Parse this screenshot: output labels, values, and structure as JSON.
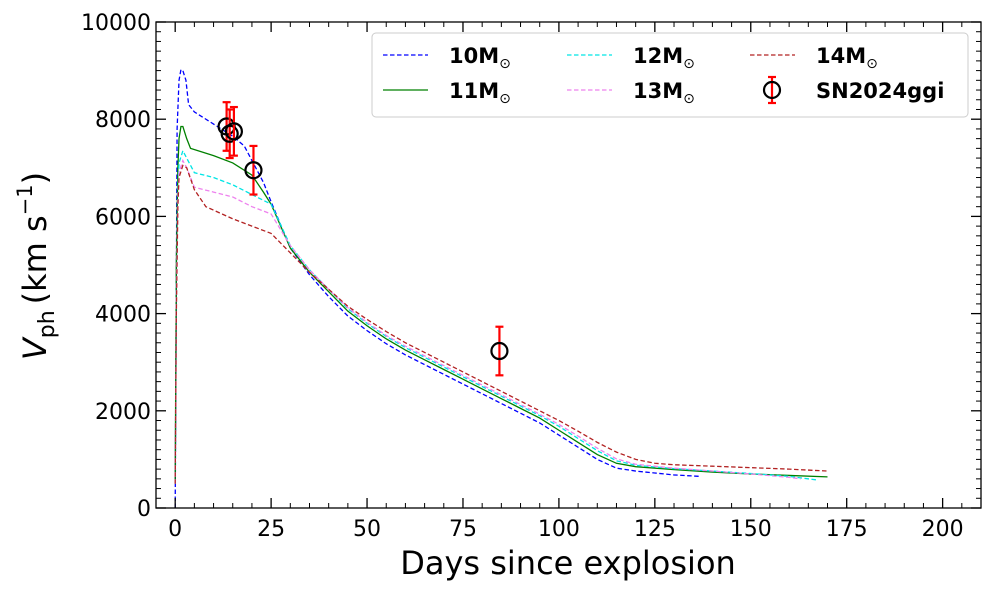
{
  "chart_data": {
    "type": "line",
    "title": "",
    "xlabel": "Days since explosion",
    "ylabel": {
      "main": "V",
      "sub": "ph",
      "unit_prefix": "(km s",
      "unit_exp": "−1",
      "unit_suffix": ")"
    },
    "xlim": [
      -5,
      210
    ],
    "ylim": [
      0,
      10000
    ],
    "xticks": [
      0,
      25,
      50,
      75,
      100,
      125,
      150,
      175,
      200
    ],
    "yticks": [
      0,
      2000,
      4000,
      6000,
      8000,
      10000
    ],
    "grid": false,
    "legend": {
      "position": "top-right",
      "columns": 3
    },
    "series": [
      {
        "name": "10M",
        "name_sub": "⊙",
        "color": "#0000ff",
        "dash": "dashed",
        "points": [
          [
            0,
            0
          ],
          [
            0.2,
            3000
          ],
          [
            0.5,
            7800
          ],
          [
            1,
            8800
          ],
          [
            1.5,
            9020
          ],
          [
            2,
            9000
          ],
          [
            2.8,
            8800
          ],
          [
            3.5,
            8300
          ],
          [
            5,
            8150
          ],
          [
            10,
            7900
          ],
          [
            15,
            7650
          ],
          [
            18,
            7450
          ],
          [
            20,
            7150
          ],
          [
            23,
            6700
          ],
          [
            25,
            6300
          ],
          [
            30,
            5350
          ],
          [
            35,
            4800
          ],
          [
            40,
            4350
          ],
          [
            45,
            3950
          ],
          [
            50,
            3650
          ],
          [
            55,
            3380
          ],
          [
            60,
            3150
          ],
          [
            65,
            2950
          ],
          [
            70,
            2750
          ],
          [
            75,
            2550
          ],
          [
            80,
            2350
          ],
          [
            85,
            2150
          ],
          [
            90,
            1950
          ],
          [
            95,
            1750
          ],
          [
            100,
            1500
          ],
          [
            105,
            1250
          ],
          [
            110,
            1000
          ],
          [
            115,
            820
          ],
          [
            120,
            760
          ],
          [
            125,
            720
          ],
          [
            130,
            680
          ],
          [
            137,
            650
          ]
        ]
      },
      {
        "name": "11M",
        "name_sub": "⊙",
        "color": "#008000",
        "dash": "solid",
        "points": [
          [
            0,
            500
          ],
          [
            0.3,
            5000
          ],
          [
            0.7,
            7000
          ],
          [
            1,
            7600
          ],
          [
            1.5,
            7850
          ],
          [
            2,
            7850
          ],
          [
            3,
            7600
          ],
          [
            4,
            7400
          ],
          [
            10,
            7250
          ],
          [
            15,
            7100
          ],
          [
            20,
            6850
          ],
          [
            23,
            6500
          ],
          [
            25,
            6250
          ],
          [
            30,
            5350
          ],
          [
            35,
            4850
          ],
          [
            40,
            4450
          ],
          [
            45,
            4050
          ],
          [
            50,
            3750
          ],
          [
            55,
            3480
          ],
          [
            60,
            3250
          ],
          [
            65,
            3050
          ],
          [
            70,
            2850
          ],
          [
            75,
            2650
          ],
          [
            80,
            2450
          ],
          [
            85,
            2250
          ],
          [
            90,
            2050
          ],
          [
            95,
            1850
          ],
          [
            100,
            1600
          ],
          [
            105,
            1350
          ],
          [
            110,
            1100
          ],
          [
            115,
            920
          ],
          [
            120,
            850
          ],
          [
            130,
            790
          ],
          [
            140,
            740
          ],
          [
            150,
            700
          ],
          [
            160,
            670
          ],
          [
            170,
            640
          ]
        ]
      },
      {
        "name": "12M",
        "name_sub": "⊙",
        "color": "#00e5e5",
        "dash": "dashed",
        "points": [
          [
            0,
            500
          ],
          [
            0.3,
            4500
          ],
          [
            0.7,
            6500
          ],
          [
            1,
            7100
          ],
          [
            2,
            7350
          ],
          [
            3,
            7200
          ],
          [
            5,
            6900
          ],
          [
            10,
            6800
          ],
          [
            15,
            6650
          ],
          [
            20,
            6450
          ],
          [
            25,
            6250
          ],
          [
            30,
            5400
          ],
          [
            35,
            4900
          ],
          [
            40,
            4500
          ],
          [
            45,
            4100
          ],
          [
            50,
            3800
          ],
          [
            55,
            3530
          ],
          [
            60,
            3300
          ],
          [
            65,
            3100
          ],
          [
            70,
            2900
          ],
          [
            75,
            2700
          ],
          [
            80,
            2500
          ],
          [
            85,
            2300
          ],
          [
            90,
            2100
          ],
          [
            95,
            1900
          ],
          [
            100,
            1680
          ],
          [
            105,
            1430
          ],
          [
            110,
            1180
          ],
          [
            115,
            970
          ],
          [
            120,
            880
          ],
          [
            130,
            810
          ],
          [
            140,
            760
          ],
          [
            150,
            710
          ],
          [
            160,
            650
          ],
          [
            167,
            580
          ]
        ]
      },
      {
        "name": "13M",
        "name_sub": "⊙",
        "color": "#ee82ee",
        "dash": "dashed",
        "points": [
          [
            0,
            500
          ],
          [
            0.3,
            4300
          ],
          [
            0.7,
            6400
          ],
          [
            1,
            6900
          ],
          [
            2,
            7150
          ],
          [
            3,
            7000
          ],
          [
            5,
            6600
          ],
          [
            10,
            6500
          ],
          [
            15,
            6400
          ],
          [
            20,
            6200
          ],
          [
            25,
            6050
          ],
          [
            30,
            5400
          ],
          [
            35,
            4900
          ],
          [
            40,
            4500
          ],
          [
            45,
            4120
          ],
          [
            50,
            3820
          ],
          [
            55,
            3550
          ],
          [
            60,
            3330
          ],
          [
            65,
            3130
          ],
          [
            70,
            2930
          ],
          [
            75,
            2730
          ],
          [
            80,
            2530
          ],
          [
            85,
            2330
          ],
          [
            90,
            2130
          ],
          [
            95,
            1930
          ],
          [
            100,
            1720
          ],
          [
            105,
            1480
          ],
          [
            110,
            1230
          ],
          [
            115,
            1010
          ],
          [
            120,
            900
          ],
          [
            130,
            820
          ],
          [
            140,
            760
          ],
          [
            150,
            700
          ],
          [
            160,
            630
          ],
          [
            163,
            600
          ]
        ]
      },
      {
        "name": "14M",
        "name_sub": "⊙",
        "color": "#b22222",
        "dash": "dashed",
        "points": [
          [
            0,
            500
          ],
          [
            0.3,
            4000
          ],
          [
            0.7,
            6200
          ],
          [
            1,
            6800
          ],
          [
            2,
            7050
          ],
          [
            3,
            7000
          ],
          [
            5,
            6550
          ],
          [
            8,
            6200
          ],
          [
            15,
            5950
          ],
          [
            20,
            5800
          ],
          [
            25,
            5650
          ],
          [
            30,
            5250
          ],
          [
            35,
            4850
          ],
          [
            40,
            4500
          ],
          [
            45,
            4150
          ],
          [
            50,
            3880
          ],
          [
            55,
            3630
          ],
          [
            60,
            3400
          ],
          [
            65,
            3200
          ],
          [
            70,
            3000
          ],
          [
            75,
            2800
          ],
          [
            80,
            2600
          ],
          [
            85,
            2400
          ],
          [
            90,
            2200
          ],
          [
            95,
            2000
          ],
          [
            100,
            1800
          ],
          [
            105,
            1580
          ],
          [
            110,
            1350
          ],
          [
            115,
            1150
          ],
          [
            120,
            1000
          ],
          [
            125,
            920
          ],
          [
            130,
            890
          ],
          [
            140,
            860
          ],
          [
            150,
            830
          ],
          [
            160,
            800
          ],
          [
            170,
            760
          ]
        ]
      }
    ],
    "observations": {
      "name": "SN2024ggi",
      "marker_color": "#000000",
      "errorbar_color": "#ff0000",
      "points": [
        {
          "x": 13.4,
          "y": 7850,
          "err": 500
        },
        {
          "x": 14.2,
          "y": 7700,
          "err": 500
        },
        {
          "x": 15.3,
          "y": 7750,
          "err": 500
        },
        {
          "x": 20.4,
          "y": 6950,
          "err": 500
        },
        {
          "x": 84.5,
          "y": 3230,
          "err": 500
        }
      ]
    }
  }
}
